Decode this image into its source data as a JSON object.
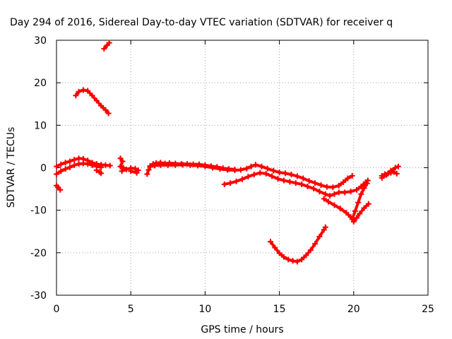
{
  "chart_data": {
    "type": "scatter",
    "title": "Day 294 of 2016, Sidereal Day-to-day VTEC variation (SDTVAR) for receiver q",
    "xlabel": "GPS time / hours",
    "ylabel": "SDTVAR / TECUs",
    "xlim": [
      0,
      25
    ],
    "ylim": [
      -30,
      30
    ],
    "xticks": [
      0,
      5,
      10,
      15,
      20,
      25
    ],
    "yticks": [
      -30,
      -20,
      -10,
      0,
      10,
      20,
      30
    ],
    "grid": true,
    "legend": "none",
    "series": [
      {
        "color": "#ff0000",
        "marker": "plus",
        "points": [
          [
            0.0,
            -4.2
          ],
          [
            0.1,
            -4.6
          ],
          [
            0.25,
            -5.2
          ],
          [
            0.0,
            -1.5
          ],
          [
            0.3,
            -0.8
          ],
          [
            0.6,
            -0.3
          ],
          [
            0.9,
            0.1
          ],
          [
            1.2,
            0.6
          ],
          [
            1.5,
            0.9
          ],
          [
            1.8,
            1.0
          ],
          [
            2.1,
            0.9
          ],
          [
            2.4,
            0.6
          ],
          [
            2.7,
            0.3
          ],
          [
            3.0,
            0.1
          ],
          [
            0.0,
            0.3
          ],
          [
            0.3,
            0.8
          ],
          [
            0.6,
            1.2
          ],
          [
            0.9,
            1.5
          ],
          [
            1.2,
            1.9
          ],
          [
            1.5,
            2.2
          ],
          [
            1.8,
            2.1
          ],
          [
            2.1,
            1.7
          ],
          [
            2.4,
            1.2
          ],
          [
            2.7,
            0.9
          ],
          [
            3.0,
            0.7
          ],
          [
            3.3,
            0.6
          ],
          [
            3.6,
            0.5
          ],
          [
            2.7,
            -0.6
          ],
          [
            2.9,
            -1.0
          ],
          [
            3.0,
            -1.3
          ],
          [
            1.3,
            17.0
          ],
          [
            1.5,
            17.9
          ],
          [
            1.8,
            18.3
          ],
          [
            2.1,
            18.1
          ],
          [
            2.4,
            17.0
          ],
          [
            2.7,
            15.8
          ],
          [
            3.0,
            14.6
          ],
          [
            3.3,
            13.6
          ],
          [
            3.5,
            12.8
          ],
          [
            3.2,
            28.0
          ],
          [
            3.4,
            28.8
          ],
          [
            3.55,
            29.4
          ],
          [
            4.3,
            2.2
          ],
          [
            4.45,
            1.5
          ],
          [
            4.3,
            0.3
          ],
          [
            4.5,
            0.0
          ],
          [
            4.4,
            -0.8
          ],
          [
            4.7,
            -0.4
          ],
          [
            5.0,
            -0.1
          ],
          [
            5.3,
            -0.2
          ],
          [
            5.5,
            -0.6
          ],
          [
            5.4,
            -1.2
          ],
          [
            5.0,
            -0.8
          ],
          [
            6.1,
            -1.5
          ],
          [
            6.2,
            -0.5
          ],
          [
            6.3,
            0.2
          ],
          [
            6.5,
            0.9
          ],
          [
            6.7,
            1.1
          ],
          [
            7.0,
            1.2
          ],
          [
            7.3,
            1.0
          ],
          [
            7.6,
            1.1
          ],
          [
            8.0,
            1.0
          ],
          [
            8.4,
            0.9
          ],
          [
            8.8,
            0.9
          ],
          [
            9.2,
            0.8
          ],
          [
            9.6,
            0.8
          ],
          [
            10.0,
            0.6
          ],
          [
            10.4,
            0.4
          ],
          [
            10.8,
            0.2
          ],
          [
            11.2,
            -0.1
          ],
          [
            11.6,
            -0.3
          ],
          [
            12.0,
            -0.4
          ],
          [
            6.3,
            0.4
          ],
          [
            6.6,
            0.5
          ],
          [
            7.0,
            0.6
          ],
          [
            7.5,
            0.6
          ],
          [
            8.0,
            0.6
          ],
          [
            8.5,
            0.7
          ],
          [
            9.0,
            0.6
          ],
          [
            9.5,
            0.5
          ],
          [
            10.0,
            0.3
          ],
          [
            10.5,
            0.0
          ],
          [
            11.0,
            -0.3
          ],
          [
            11.5,
            -0.5
          ],
          [
            12.0,
            -0.6
          ],
          [
            12.4,
            -0.5
          ],
          [
            12.8,
            -0.2
          ],
          [
            13.1,
            0.3
          ],
          [
            13.4,
            0.7
          ],
          [
            13.8,
            0.3
          ],
          [
            14.2,
            -0.2
          ],
          [
            14.6,
            -0.7
          ],
          [
            15.0,
            -1.1
          ],
          [
            15.4,
            -1.3
          ],
          [
            15.8,
            -1.6
          ],
          [
            16.2,
            -2.0
          ],
          [
            16.6,
            -2.5
          ],
          [
            17.0,
            -3.1
          ],
          [
            17.4,
            -3.6
          ],
          [
            17.8,
            -4.1
          ],
          [
            18.2,
            -4.5
          ],
          [
            18.6,
            -4.6
          ],
          [
            19.0,
            -4.2
          ],
          [
            19.3,
            -3.4
          ],
          [
            19.6,
            -2.5
          ],
          [
            19.9,
            -1.9
          ],
          [
            11.3,
            -3.9
          ],
          [
            11.7,
            -3.6
          ],
          [
            12.1,
            -3.2
          ],
          [
            12.5,
            -2.7
          ],
          [
            12.9,
            -2.1
          ],
          [
            13.3,
            -1.6
          ],
          [
            13.7,
            -1.2
          ],
          [
            14.1,
            -1.4
          ],
          [
            14.5,
            -2.0
          ],
          [
            14.9,
            -2.6
          ],
          [
            15.3,
            -3.0
          ],
          [
            15.7,
            -3.3
          ],
          [
            16.1,
            -3.6
          ],
          [
            16.5,
            -3.9
          ],
          [
            16.9,
            -4.4
          ],
          [
            17.3,
            -4.9
          ],
          [
            17.7,
            -5.6
          ],
          [
            18.1,
            -6.2
          ],
          [
            18.4,
            -6.6
          ],
          [
            18.7,
            -6.2
          ],
          [
            19.0,
            -5.8
          ],
          [
            19.4,
            -5.8
          ],
          [
            19.8,
            -5.6
          ],
          [
            20.2,
            -5.2
          ],
          [
            20.5,
            -4.4
          ],
          [
            20.8,
            -3.4
          ],
          [
            20.95,
            -3.0
          ],
          [
            18.0,
            -7.3
          ],
          [
            18.3,
            -8.0
          ],
          [
            18.7,
            -8.8
          ],
          [
            19.1,
            -9.6
          ],
          [
            19.5,
            -10.6
          ],
          [
            19.8,
            -11.6
          ],
          [
            20.0,
            -12.7
          ],
          [
            20.2,
            -11.8
          ],
          [
            20.4,
            -10.8
          ],
          [
            20.7,
            -9.5
          ],
          [
            21.0,
            -8.5
          ],
          [
            19.9,
            -12.1
          ],
          [
            20.1,
            -10.2
          ],
          [
            20.3,
            -8.2
          ],
          [
            20.5,
            -6.2
          ],
          [
            20.7,
            -4.8
          ],
          [
            20.9,
            -3.7
          ],
          [
            14.4,
            -17.4
          ],
          [
            14.7,
            -18.8
          ],
          [
            15.0,
            -20.1
          ],
          [
            15.3,
            -21.0
          ],
          [
            15.6,
            -21.6
          ],
          [
            15.9,
            -21.9
          ],
          [
            16.2,
            -22.1
          ],
          [
            16.5,
            -21.6
          ],
          [
            16.8,
            -20.6
          ],
          [
            17.1,
            -19.4
          ],
          [
            17.4,
            -17.9
          ],
          [
            17.7,
            -16.2
          ],
          [
            18.0,
            -14.6
          ],
          [
            18.1,
            -14.0
          ],
          [
            21.9,
            -1.9
          ],
          [
            22.1,
            -1.5
          ],
          [
            22.3,
            -1.4
          ],
          [
            22.5,
            -1.2
          ],
          [
            22.7,
            -1.0
          ],
          [
            22.9,
            -1.4
          ],
          [
            21.9,
            -2.4
          ],
          [
            22.2,
            -1.7
          ],
          [
            22.5,
            -0.7
          ],
          [
            22.8,
            0.0
          ],
          [
            23.0,
            0.3
          ]
        ]
      }
    ]
  }
}
